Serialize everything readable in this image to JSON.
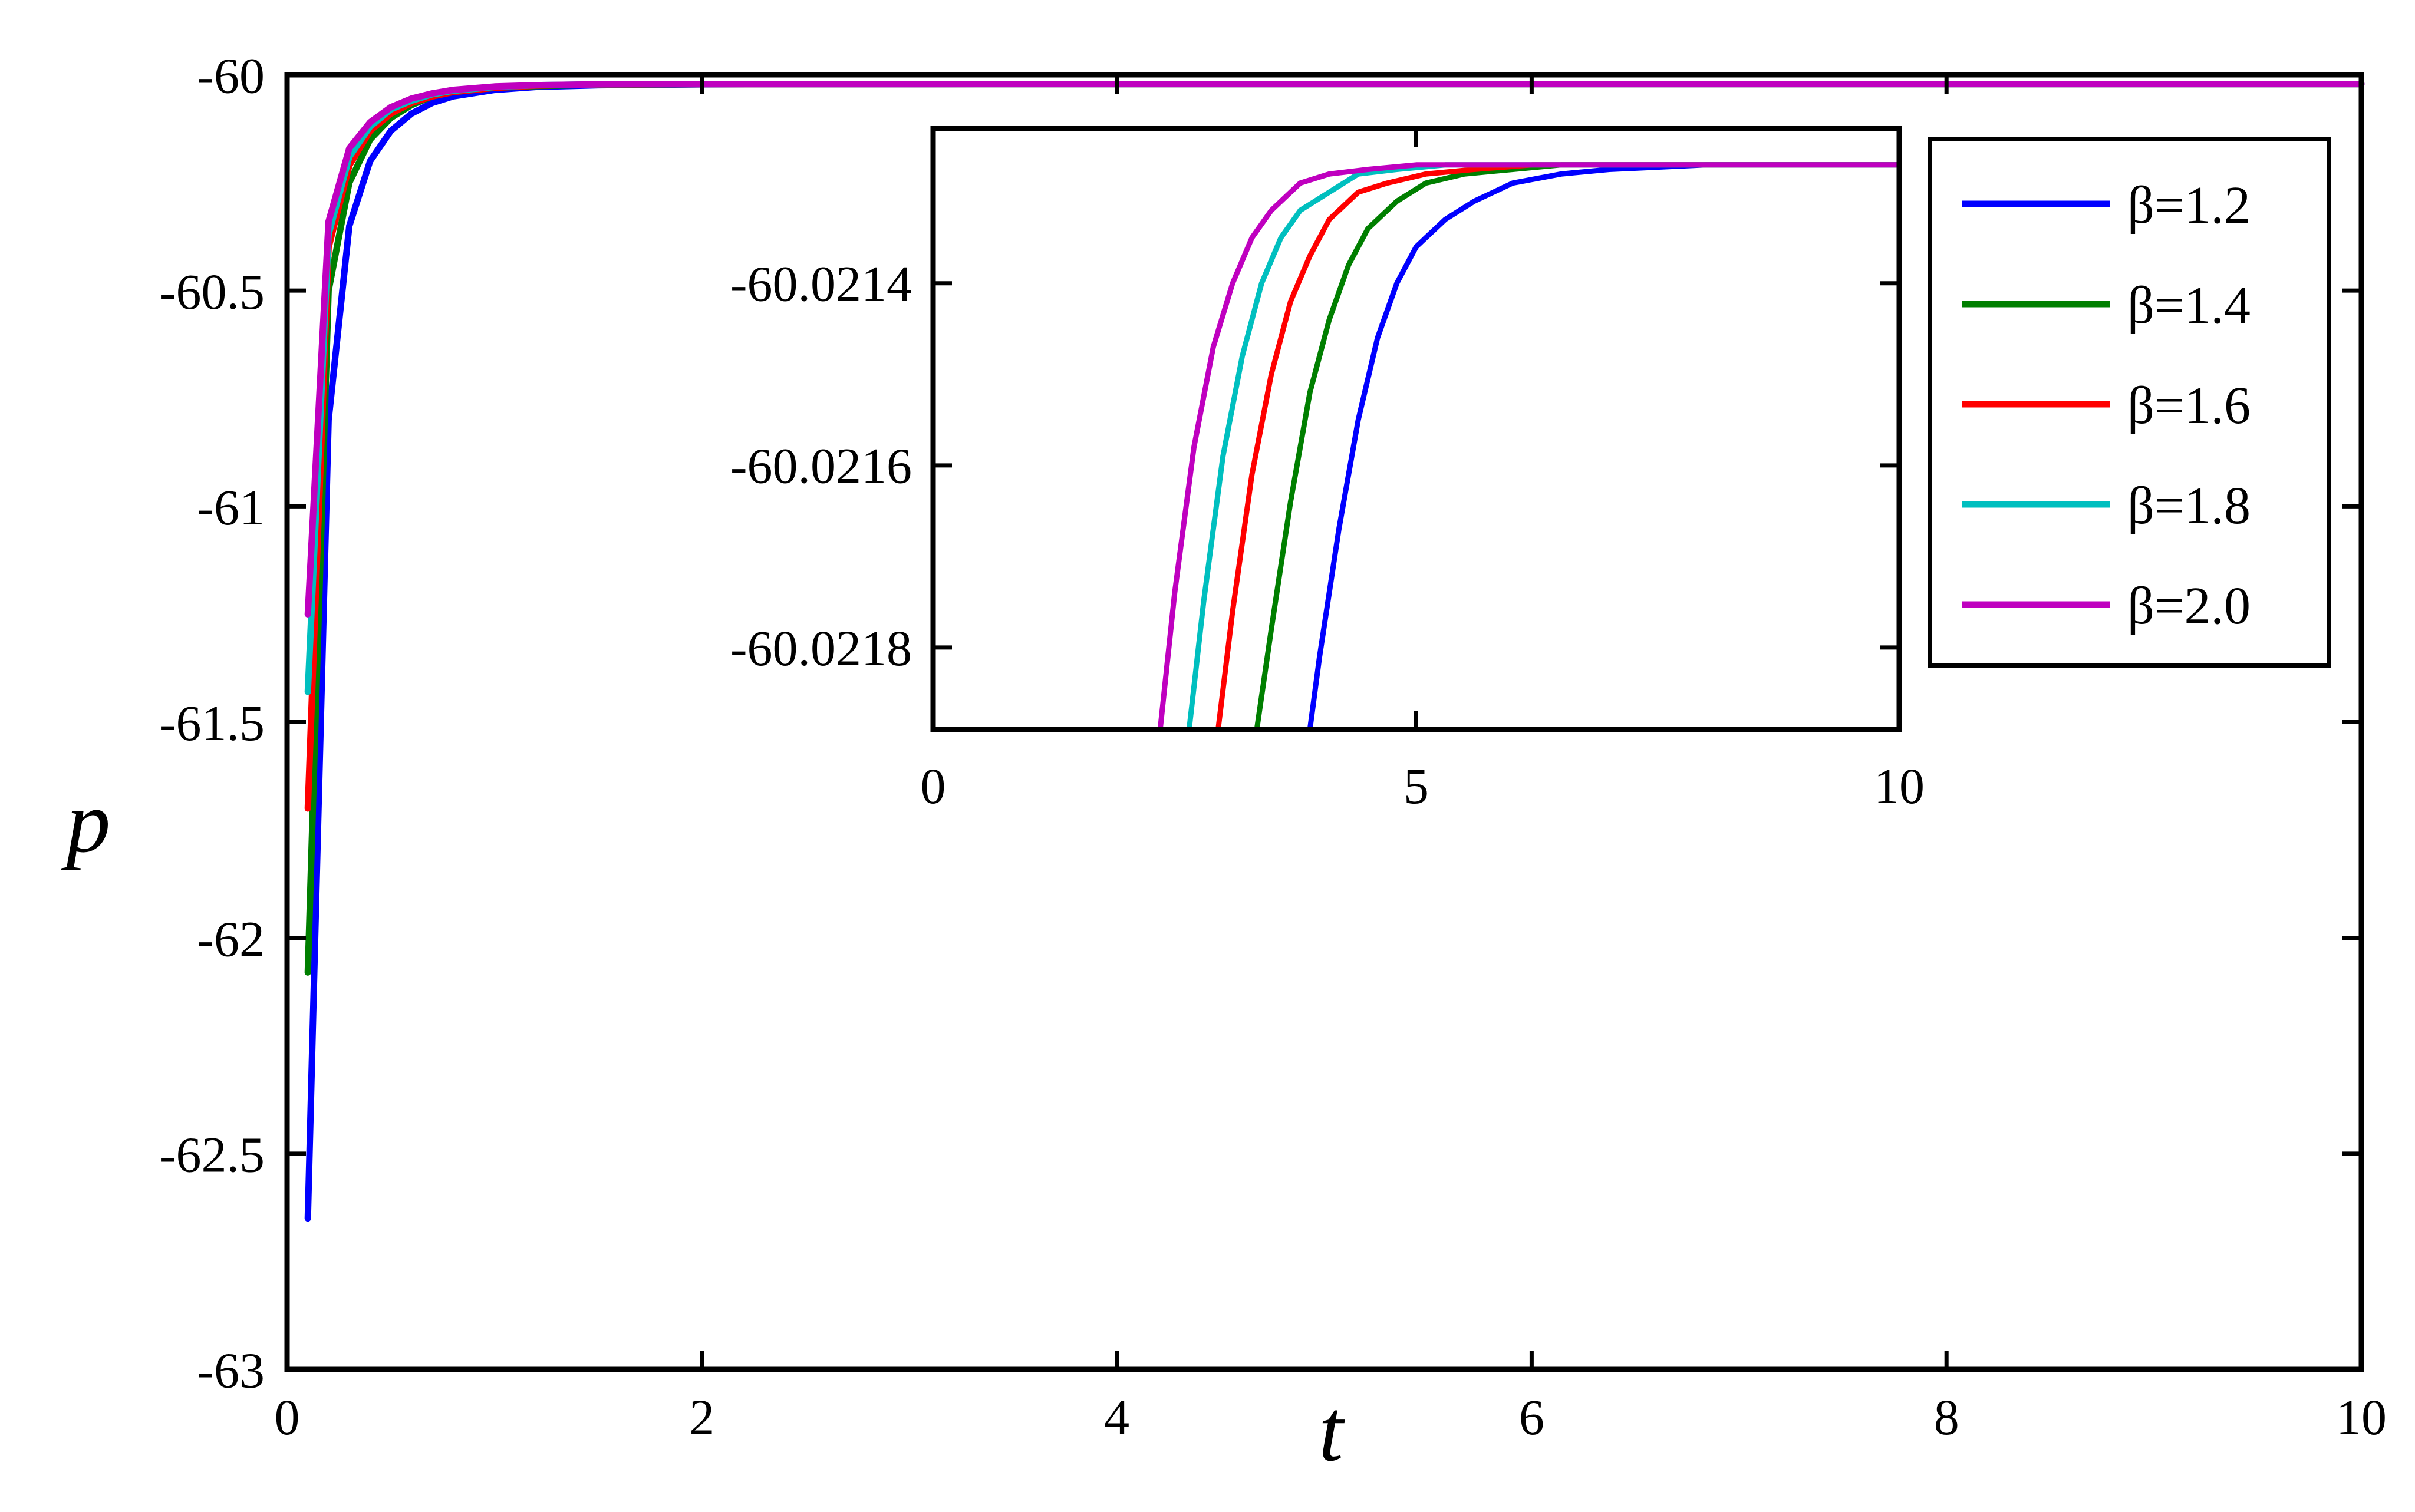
{
  "chart_data": [
    {
      "id": "main",
      "type": "line",
      "xlabel": "t",
      "ylabel": "p",
      "xlim": [
        0,
        10
      ],
      "ylim": [
        -63,
        -60
      ],
      "xticks": [
        0,
        2,
        4,
        6,
        8,
        10
      ],
      "yticks": [
        -60,
        -60.5,
        -61,
        -61.5,
        -62,
        -62.5,
        -63
      ],
      "xtick_labels": [
        "0",
        "2",
        "4",
        "6",
        "8",
        "10"
      ],
      "ytick_labels": [
        "-60",
        "-60.5",
        "-61",
        "-61.5",
        "-62",
        "-62.5",
        "-63"
      ],
      "grid": false,
      "legend_position": "top-right",
      "series": [
        {
          "name": "β=1.2",
          "color": "#0000ff",
          "x": [
            0.1,
            0.2,
            0.3,
            0.4,
            0.5,
            0.6,
            0.7,
            0.8,
            1.0,
            1.2,
            1.5,
            2.0,
            3.0,
            5.0,
            10.0
          ],
          "y": [
            -62.65,
            -60.8,
            -60.35,
            -60.2,
            -60.13,
            -60.09,
            -60.065,
            -60.05,
            -60.035,
            -60.028,
            -60.024,
            -60.022,
            -60.0214,
            -60.0213,
            -60.0213
          ]
        },
        {
          "name": "β=1.4",
          "color": "#007f00",
          "x": [
            0.1,
            0.2,
            0.3,
            0.4,
            0.5,
            0.6,
            0.7,
            0.8,
            1.0,
            1.2,
            1.5,
            2.0,
            3.0,
            5.0,
            10.0
          ],
          "y": [
            -62.08,
            -60.5,
            -60.25,
            -60.15,
            -60.1,
            -60.07,
            -60.05,
            -60.04,
            -60.03,
            -60.026,
            -60.023,
            -60.0218,
            -60.0214,
            -60.0213,
            -60.0213
          ]
        },
        {
          "name": "β=1.6",
          "color": "#ff0000",
          "x": [
            0.1,
            0.2,
            0.3,
            0.4,
            0.5,
            0.6,
            0.7,
            0.8,
            1.0,
            1.2,
            1.5,
            2.0,
            3.0,
            5.0,
            10.0
          ],
          "y": [
            -61.7,
            -60.4,
            -60.21,
            -60.13,
            -60.09,
            -60.065,
            -60.05,
            -60.04,
            -60.03,
            -60.025,
            -60.022,
            -60.0217,
            -60.0214,
            -60.0213,
            -60.0213
          ]
        },
        {
          "name": "β=1.8",
          "color": "#00bfbf",
          "x": [
            0.1,
            0.2,
            0.3,
            0.4,
            0.5,
            0.6,
            0.7,
            0.8,
            1.0,
            1.2,
            1.5,
            2.0,
            3.0,
            5.0,
            10.0
          ],
          "y": [
            -61.43,
            -60.37,
            -60.19,
            -60.12,
            -60.08,
            -60.06,
            -60.045,
            -60.037,
            -60.028,
            -60.024,
            -60.022,
            -60.0216,
            -60.0214,
            -60.0213,
            -60.0213
          ]
        },
        {
          "name": "β=2.0",
          "color": "#bf00bf",
          "x": [
            0.1,
            0.2,
            0.3,
            0.4,
            0.5,
            0.6,
            0.7,
            0.8,
            1.0,
            1.2,
            1.5,
            2.0,
            3.0,
            5.0,
            10.0
          ],
          "y": [
            -61.25,
            -60.34,
            -60.17,
            -60.11,
            -60.075,
            -60.055,
            -60.043,
            -60.035,
            -60.027,
            -60.024,
            -60.022,
            -60.0216,
            -60.0214,
            -60.0213,
            -60.0213
          ]
        }
      ]
    },
    {
      "id": "inset",
      "type": "line",
      "xlabel": "",
      "ylabel": "",
      "xlim": [
        0,
        10
      ],
      "ylim": [
        -60.02189,
        -60.02123
      ],
      "xticks": [
        0,
        5,
        10
      ],
      "yticks": [
        -60.0214,
        -60.0216,
        -60.0218
      ],
      "xtick_labels": [
        "0",
        "5",
        "10"
      ],
      "ytick_labels": [
        "-60.0214",
        "-60.0216",
        "-60.0218"
      ],
      "grid": false,
      "series": [
        {
          "name": "β=1.2",
          "color": "#0000ff",
          "x": [
            3.9,
            4.0,
            4.2,
            4.4,
            4.6,
            4.8,
            5.0,
            5.3,
            5.6,
            6.0,
            6.5,
            7.0,
            8.0,
            9.0,
            10.0
          ],
          "y": [
            -60.02189,
            -60.02181,
            -60.02167,
            -60.02155,
            -60.02146,
            -60.0214,
            -60.02136,
            -60.02133,
            -60.02131,
            -60.02129,
            -60.02128,
            -60.021275,
            -60.02127,
            -60.02127,
            -60.02127
          ]
        },
        {
          "name": "β=1.4",
          "color": "#007f00",
          "x": [
            3.35,
            3.5,
            3.7,
            3.9,
            4.1,
            4.3,
            4.5,
            4.8,
            5.1,
            5.5,
            6.0,
            6.5,
            7.5,
            10.0
          ],
          "y": [
            -60.02189,
            -60.02178,
            -60.02164,
            -60.02152,
            -60.02144,
            -60.02138,
            -60.02134,
            -60.02131,
            -60.02129,
            -60.02128,
            -60.021275,
            -60.02127,
            -60.02127,
            -60.02127
          ]
        },
        {
          "name": "β=1.6",
          "color": "#ff0000",
          "x": [
            2.95,
            3.1,
            3.3,
            3.5,
            3.7,
            3.9,
            4.1,
            4.4,
            4.7,
            5.1,
            5.6,
            6.2,
            7.0,
            10.0
          ],
          "y": [
            -60.02189,
            -60.02176,
            -60.02161,
            -60.0215,
            -60.02142,
            -60.02137,
            -60.02133,
            -60.0213,
            -60.02129,
            -60.02128,
            -60.021275,
            -60.02127,
            -60.02127,
            -60.02127
          ]
        },
        {
          "name": "β=1.8",
          "color": "#00bfbf",
          "x": [
            2.65,
            2.8,
            3.0,
            3.2,
            3.4,
            3.6,
            3.8,
            4.1,
            4.4,
            4.8,
            5.3,
            6.0,
            7.0,
            10.0
          ],
          "y": [
            -60.02189,
            -60.02175,
            -60.02159,
            -60.02148,
            -60.0214,
            -60.02135,
            -60.02132,
            -60.0213,
            -60.02128,
            -60.021275,
            -60.02127,
            -60.02127,
            -60.02127,
            -60.02127
          ]
        },
        {
          "name": "β=2.0",
          "color": "#bf00bf",
          "x": [
            2.35,
            2.5,
            2.7,
            2.9,
            3.1,
            3.3,
            3.5,
            3.8,
            4.1,
            4.5,
            5.0,
            5.6,
            6.5,
            10.0
          ],
          "y": [
            -60.02189,
            -60.02174,
            -60.02158,
            -60.02147,
            -60.0214,
            -60.02135,
            -60.02132,
            -60.02129,
            -60.02128,
            -60.021275,
            -60.02127,
            -60.02127,
            -60.02127,
            -60.02127
          ]
        }
      ]
    }
  ]
}
